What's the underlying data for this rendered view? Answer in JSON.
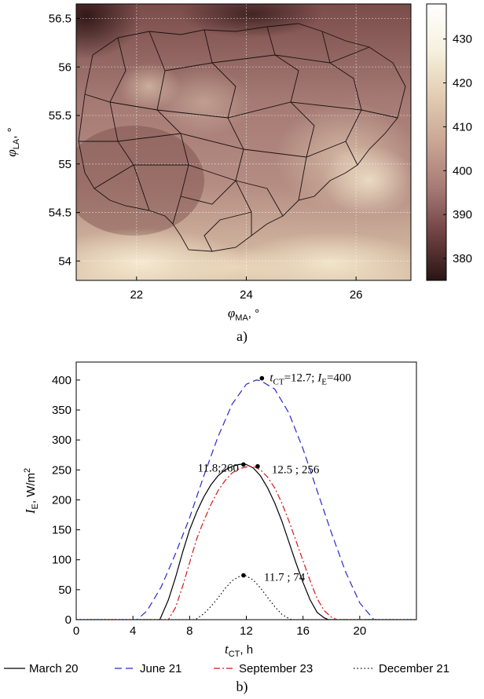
{
  "chart_data": [
    {
      "type": "heatmap",
      "panel_label": "a)",
      "xlabel_symbol": "φ",
      "xlabel_sub": "MA",
      "xlabel_unit": ", °",
      "ylabel_symbol": "φ",
      "ylabel_sub": "LA",
      "ylabel_unit": ", °",
      "xlim": [
        20.9,
        27.0
      ],
      "ylim": [
        53.8,
        56.65
      ],
      "x_ticks": [
        "22",
        "24",
        "26"
      ],
      "x_tick_values": [
        22,
        24,
        26
      ],
      "y_ticks": [
        "54",
        "54.5",
        "55",
        "55.5",
        "56",
        "56.5"
      ],
      "y_tick_values": [
        54,
        54.5,
        55,
        55.5,
        56,
        56.5
      ],
      "grid": true,
      "colorbar": {
        "ticks": [
          "380",
          "390",
          "400",
          "410",
          "420",
          "430"
        ],
        "tick_values": [
          380,
          390,
          400,
          410,
          420,
          430
        ],
        "range": [
          375,
          438
        ],
        "colors": [
          "#2a1414",
          "#6e4141",
          "#a67a74",
          "#c9a694",
          "#e2cdb2",
          "#f6f1de",
          "#ffffff"
        ]
      }
    },
    {
      "type": "line",
      "panel_label": "b)",
      "xlabel_symbol": "t",
      "xlabel_sub": "CT",
      "xlabel_unit": ", h",
      "ylabel_symbol": "I",
      "ylabel_sub": "E",
      "ylabel_unit": ", W/m",
      "ylabel_sup": "2",
      "xlim": [
        0,
        24
      ],
      "ylim": [
        0,
        430
      ],
      "x_ticks": [
        "0",
        "4",
        "8",
        "12",
        "16",
        "20"
      ],
      "x_tick_values": [
        0,
        4,
        8,
        12,
        16,
        20
      ],
      "y_ticks": [
        "0",
        "50",
        "100",
        "150",
        "200",
        "250",
        "300",
        "350",
        "400"
      ],
      "y_tick_values": [
        0,
        50,
        100,
        150,
        200,
        250,
        300,
        350,
        400
      ],
      "series": [
        {
          "name": "March 20",
          "color": "#000000",
          "dash": "solid",
          "x": [
            5.9,
            6.5,
            7.0,
            7.5,
            8.0,
            8.5,
            9.0,
            9.5,
            10.0,
            10.5,
            11.0,
            11.5,
            11.8,
            12.0,
            12.5,
            13.0,
            13.5,
            14.0,
            14.5,
            15.0,
            15.5,
            16.0,
            16.5,
            17.0,
            17.5,
            17.8
          ],
          "y": [
            0,
            33,
            70,
            112,
            150,
            180,
            205,
            225,
            240,
            250,
            256,
            259,
            260,
            259,
            253,
            240,
            220,
            195,
            165,
            130,
            95,
            62,
            33,
            12,
            3,
            0
          ]
        },
        {
          "name": "June 21",
          "color": "#2828d0",
          "dash": "long",
          "x": [
            4.3,
            5.0,
            6.0,
            7.0,
            8.0,
            9.0,
            10.0,
            11.0,
            12.0,
            12.7,
            13.0,
            14.0,
            15.0,
            16.0,
            17.0,
            18.0,
            19.0,
            20.0,
            21.0
          ],
          "y": [
            0,
            15,
            55,
            110,
            170,
            240,
            305,
            360,
            393,
            400,
            399,
            385,
            345,
            285,
            215,
            145,
            80,
            28,
            0
          ]
        },
        {
          "name": "September 23",
          "color": "#d01818",
          "dash": "dashdot",
          "x": [
            6.5,
            7.0,
            7.5,
            8.0,
            8.5,
            9.0,
            9.5,
            10.0,
            10.5,
            11.0,
            11.5,
            12.0,
            12.5,
            13.0,
            13.5,
            14.0,
            14.5,
            15.0,
            15.5,
            16.0,
            16.5,
            17.0,
            17.5,
            18.0,
            18.4
          ],
          "y": [
            0,
            20,
            55,
            95,
            135,
            165,
            192,
            215,
            232,
            245,
            252,
            255,
            256,
            250,
            238,
            220,
            195,
            165,
            132,
            98,
            65,
            35,
            15,
            4,
            0
          ]
        },
        {
          "name": "December 21",
          "color": "#000000",
          "dash": "dotted",
          "x": [
            8.4,
            9.0,
            9.5,
            10.0,
            10.5,
            11.0,
            11.5,
            11.7,
            12.0,
            12.5,
            13.0,
            13.5,
            14.0,
            14.5,
            15.0,
            15.2
          ],
          "y": [
            0,
            10,
            22,
            36,
            52,
            65,
            72,
            74,
            73,
            66,
            53,
            37,
            22,
            9,
            2,
            0
          ]
        }
      ],
      "markers": [
        {
          "x": 13.1,
          "y": 403,
          "label_pre": "t",
          "label_sub1": "CT",
          "label_mid": "=12.7; ",
          "label_mid2": "I",
          "label_sub2": "E",
          "label_post": "=400"
        },
        {
          "x": 11.8,
          "y": 259,
          "label": "11.8;260"
        },
        {
          "x": 12.8,
          "y": 256,
          "label": "12.5 ; 256"
        },
        {
          "x": 11.8,
          "y": 74,
          "label": "11.7 ; 74"
        }
      ]
    }
  ]
}
